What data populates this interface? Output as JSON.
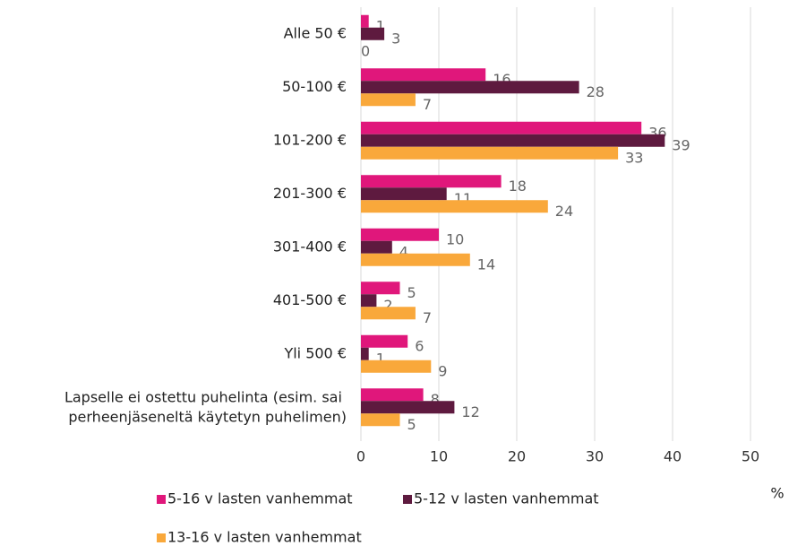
{
  "chart_data": {
    "type": "hbar",
    "categories": [
      "Alle 50 €",
      "50-100 €",
      "101-200 €",
      "201-300 €",
      "301-400 €",
      "401-500 €",
      "Yli 500 €",
      "Lapselle ei ostettu puhelinta (esim. sai perheenjäseneltä käytetyn puhelimen)"
    ],
    "series": [
      {
        "name": "5-16 v lasten vanhemmat",
        "color": "#e0177b",
        "values": [
          1,
          16,
          36,
          18,
          10,
          5,
          6,
          8
        ]
      },
      {
        "name": "5-12 v lasten vanhemmat",
        "color": "#5e1a3f",
        "values": [
          3,
          28,
          39,
          11,
          4,
          2,
          1,
          12
        ]
      },
      {
        "name": "13-16 v lasten vanhemmat",
        "color": "#f9a83b",
        "values": [
          0,
          7,
          33,
          24,
          14,
          7,
          9,
          5
        ]
      }
    ],
    "xlim": [
      0,
      50
    ],
    "xticks": [
      0,
      10,
      20,
      30,
      40,
      50
    ],
    "x_label": "%",
    "grid": true
  }
}
